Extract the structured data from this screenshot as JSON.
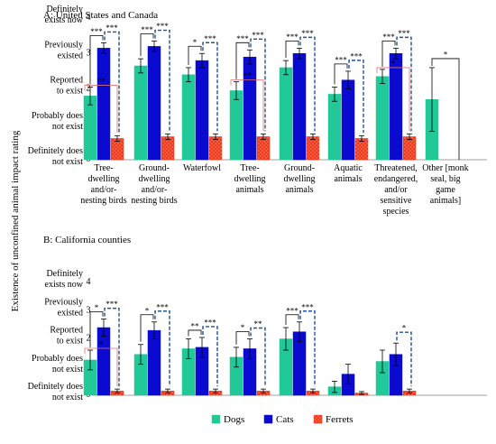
{
  "figure": {
    "y_axis_title": "Existence of unconfined animal impact rating",
    "y_tick_labels": [
      {
        "value": 0,
        "label": "Definitely does not exist"
      },
      {
        "value": 1,
        "label": "Probably does not exist"
      },
      {
        "value": 2,
        "label": "Reported to exist"
      },
      {
        "value": 3,
        "label": "Previously existed"
      },
      {
        "value": 4,
        "label": "Definitely exists now"
      }
    ],
    "legend": [
      "Dogs",
      "Cats",
      "Ferrets"
    ]
  },
  "colors": {
    "dogs": "#20c997",
    "cats": "#0a0ad0",
    "ferrets": "#ee3a1c",
    "bracket_red": "#e07070",
    "bracket_blue": "#2050a0",
    "bracket_black": "#000000"
  },
  "chart_data": [
    {
      "type": "bar",
      "title": "A: United States and Canada",
      "ylim": [
        0,
        4
      ],
      "categories": [
        [
          "Tree-",
          "dwelling",
          "and/or-",
          "nesting birds"
        ],
        [
          "Ground-",
          "dwelling",
          "and/or-",
          "nesting birds"
        ],
        [
          "Waterfowl"
        ],
        [
          "Tree-",
          "dwelling",
          "animals"
        ],
        [
          "Ground-",
          "dwelling",
          "animals"
        ],
        [
          "Aquatic",
          "animals"
        ],
        [
          "Threatened,",
          "endangered,",
          "and/or",
          "sensitive",
          "species"
        ],
        [
          "Other [monk",
          "seal, big",
          "game",
          "animals]"
        ]
      ],
      "series": [
        {
          "name": "Dogs",
          "values": [
            1.8,
            2.65,
            2.4,
            1.95,
            2.6,
            1.85,
            2.35,
            1.7
          ],
          "err": [
            0.25,
            0.2,
            0.2,
            0.25,
            0.2,
            0.2,
            0.2,
            0.9
          ]
        },
        {
          "name": "Cats",
          "values": [
            3.15,
            3.2,
            2.8,
            2.9,
            3.0,
            2.25,
            3.0,
            null
          ],
          "err": [
            0.15,
            0.15,
            0.2,
            0.2,
            0.15,
            0.25,
            0.15,
            null
          ]
        },
        {
          "name": "Ferrets",
          "values": [
            0.6,
            0.65,
            0.65,
            0.65,
            0.65,
            0.6,
            0.65,
            null
          ],
          "err": [
            0.08,
            0.08,
            0.08,
            0.08,
            0.08,
            0.08,
            0.08,
            null
          ]
        }
      ],
      "significance": [
        {
          "category": 0,
          "dogs_cats": "***",
          "dogs_ferrets": "**",
          "cats_ferrets": "***"
        },
        {
          "category": 1,
          "dogs_cats": "***",
          "dogs_ferrets": null,
          "cats_ferrets": "***"
        },
        {
          "category": 2,
          "dogs_cats": "*",
          "dogs_ferrets": null,
          "cats_ferrets": "***"
        },
        {
          "category": 3,
          "dogs_cats": "***",
          "dogs_ferrets": "**",
          "cats_ferrets": "***"
        },
        {
          "category": 4,
          "dogs_cats": "***",
          "dogs_ferrets": null,
          "cats_ferrets": "***"
        },
        {
          "category": 5,
          "dogs_cats": "***",
          "dogs_ferrets": null,
          "cats_ferrets": "***"
        },
        {
          "category": 6,
          "dogs_cats": "***",
          "dogs_ferrets": "*",
          "cats_ferrets": "***"
        },
        {
          "category": 7,
          "dogs_other": "*"
        }
      ]
    },
    {
      "type": "bar",
      "title": "B: California counties",
      "ylim": [
        0,
        4
      ],
      "categories": [
        "",
        "",
        "",
        "",
        "",
        "",
        ""
      ],
      "series": [
        {
          "name": "Dogs",
          "values": [
            1.25,
            1.45,
            1.65,
            1.35,
            2.0,
            0.3,
            1.2
          ],
          "err": [
            0.35,
            0.35,
            0.35,
            0.35,
            0.4,
            0.2,
            0.4
          ]
        },
        {
          "name": "Cats",
          "values": [
            2.4,
            2.3,
            1.7,
            1.65,
            2.25,
            0.75,
            1.45
          ],
          "err": [
            0.3,
            0.3,
            0.35,
            0.35,
            0.35,
            0.35,
            0.4
          ]
        },
        {
          "name": "Ferrets",
          "values": [
            0.15,
            0.15,
            0.15,
            0.15,
            0.15,
            0.08,
            0.15
          ],
          "err": [
            0.07,
            0.07,
            0.07,
            0.07,
            0.07,
            0.05,
            0.07
          ]
        }
      ],
      "significance": [
        {
          "category": 0,
          "dogs_cats": "*",
          "dogs_ferrets": "*",
          "cats_ferrets": "***"
        },
        {
          "category": 1,
          "dogs_cats": "*",
          "dogs_ferrets": null,
          "cats_ferrets": "***"
        },
        {
          "category": 2,
          "dogs_cats": "**",
          "dogs_ferrets": null,
          "cats_ferrets": "***"
        },
        {
          "category": 3,
          "dogs_cats": "*",
          "dogs_ferrets": null,
          "cats_ferrets": "**"
        },
        {
          "category": 4,
          "dogs_cats": "***",
          "dogs_ferrets": null,
          "cats_ferrets": "***"
        },
        {
          "category": 5
        },
        {
          "category": 6,
          "dogs_cats": null,
          "dogs_ferrets": null,
          "cats_ferrets": "*"
        }
      ]
    }
  ]
}
